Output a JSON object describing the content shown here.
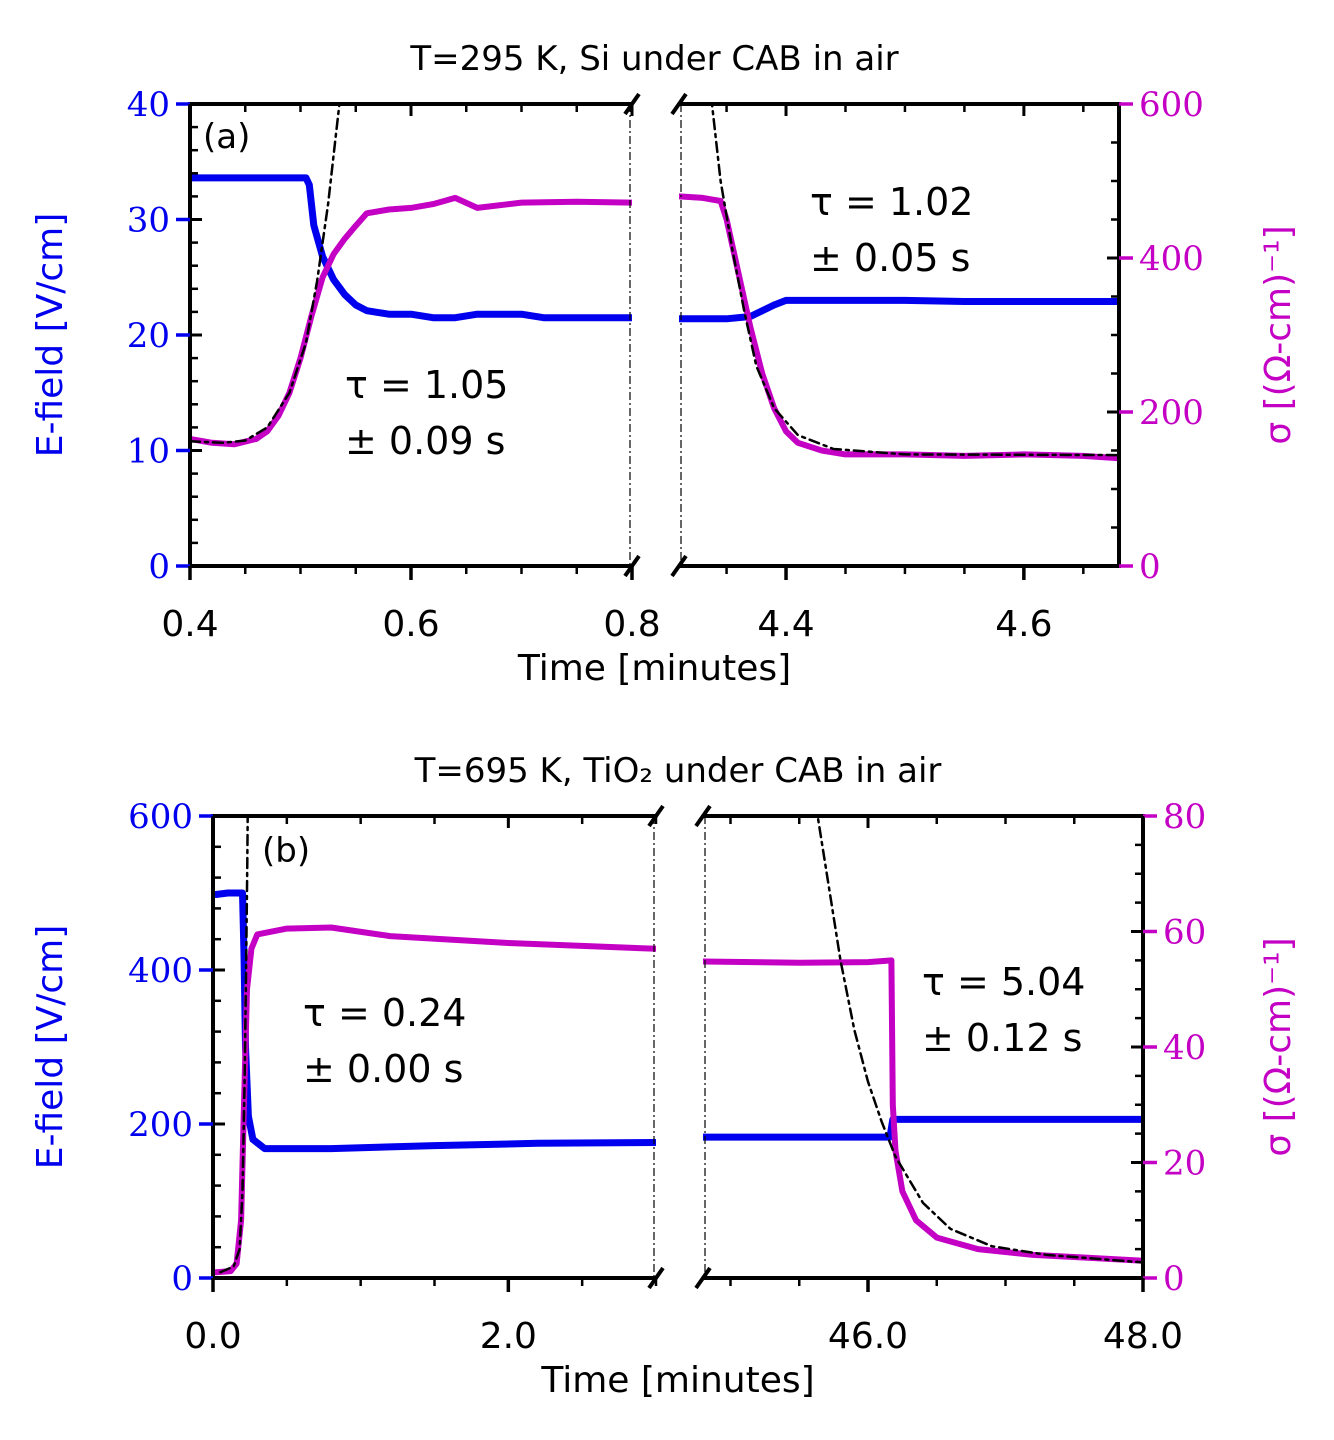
{
  "colors": {
    "efield": "#0000ee",
    "sigma": "#c400c4",
    "fit": "#000000",
    "axis": "#000000"
  },
  "chart_data": [
    {
      "type": "line",
      "panel_label": "(a)",
      "title": "T=295 K, Si under CAB in air",
      "xlabel": "Time [minutes]",
      "ylabel_left": "E-field [V/cm]",
      "ylabel_right": "σ [(Ω-cm)⁻¹]",
      "ylim_left": [
        0,
        40
      ],
      "ylim_right": [
        0,
        600
      ],
      "yticks_left": [
        "0",
        "10",
        "20",
        "30",
        "40"
      ],
      "yticks_right": [
        "0",
        "200",
        "400",
        "600"
      ],
      "segments": [
        {
          "xlim": [
            0.4,
            0.8
          ],
          "xticks": [
            0.4,
            0.6,
            0.8
          ],
          "xtick_labels": [
            "0.4",
            "0.6",
            "0.8"
          ]
        },
        {
          "xlim": [
            4.31,
            4.68
          ],
          "xticks": [
            4.4,
            4.6
          ],
          "xtick_labels": [
            "4.4",
            "4.6"
          ]
        }
      ],
      "annotations": [
        {
          "line1": "τ = 1.05",
          "line2": "± 0.09 s"
        },
        {
          "line1": "τ = 1.02",
          "line2": "± 0.05 s"
        }
      ],
      "series": [
        {
          "name": "E-field",
          "axis": "left",
          "segment": 0,
          "points": [
            [
              0.4,
              33.6
            ],
            [
              0.45,
              33.6
            ],
            [
              0.505,
              33.6
            ],
            [
              0.508,
              33.0
            ],
            [
              0.512,
              29.5
            ],
            [
              0.52,
              26.8
            ],
            [
              0.53,
              24.8
            ],
            [
              0.54,
              23.5
            ],
            [
              0.55,
              22.6
            ],
            [
              0.56,
              22.1
            ],
            [
              0.58,
              21.8
            ],
            [
              0.6,
              21.8
            ],
            [
              0.62,
              21.5
            ],
            [
              0.64,
              21.5
            ],
            [
              0.66,
              21.8
            ],
            [
              0.7,
              21.8
            ],
            [
              0.72,
              21.5
            ],
            [
              0.8,
              21.5
            ]
          ]
        },
        {
          "name": "E-field",
          "axis": "left",
          "segment": 1,
          "points": [
            [
              4.31,
              21.4
            ],
            [
              4.35,
              21.4
            ],
            [
              4.37,
              21.6
            ],
            [
              4.39,
              22.6
            ],
            [
              4.4,
              23.0
            ],
            [
              4.5,
              23.0
            ],
            [
              4.55,
              22.9
            ],
            [
              4.6,
              22.9
            ],
            [
              4.68,
              22.9
            ]
          ]
        },
        {
          "name": "σ",
          "axis": "right",
          "segment": 0,
          "points": [
            [
              0.4,
              165
            ],
            [
              0.42,
              160
            ],
            [
              0.44,
              158
            ],
            [
              0.46,
              165
            ],
            [
              0.47,
              175
            ],
            [
              0.48,
              195
            ],
            [
              0.49,
              225
            ],
            [
              0.5,
              270
            ],
            [
              0.51,
              325
            ],
            [
              0.52,
              375
            ],
            [
              0.53,
              405
            ],
            [
              0.54,
              425
            ],
            [
              0.55,
              442
            ],
            [
              0.56,
              458
            ],
            [
              0.58,
              463
            ],
            [
              0.6,
              465
            ],
            [
              0.62,
              470
            ],
            [
              0.64,
              478
            ],
            [
              0.66,
              465
            ],
            [
              0.7,
              472
            ],
            [
              0.75,
              473
            ],
            [
              0.8,
              472
            ]
          ]
        },
        {
          "name": "σ",
          "axis": "right",
          "segment": 1,
          "points": [
            [
              4.31,
              480
            ],
            [
              4.33,
              478
            ],
            [
              4.345,
              474
            ],
            [
              4.35,
              450
            ],
            [
              4.36,
              380
            ],
            [
              4.37,
              310
            ],
            [
              4.38,
              250
            ],
            [
              4.39,
              205
            ],
            [
              4.4,
              175
            ],
            [
              4.41,
              160
            ],
            [
              4.43,
              150
            ],
            [
              4.45,
              145
            ],
            [
              4.5,
              145
            ],
            [
              4.55,
              143
            ],
            [
              4.6,
              145
            ],
            [
              4.65,
              143
            ],
            [
              4.68,
              140
            ]
          ]
        },
        {
          "name": "fit",
          "axis": "right",
          "segment": 0,
          "points": [
            [
              0.4,
              162
            ],
            [
              0.43,
              160
            ],
            [
              0.45,
              163
            ],
            [
              0.47,
              180
            ],
            [
              0.49,
              225
            ],
            [
              0.505,
              290
            ],
            [
              0.515,
              370
            ],
            [
              0.525,
              470
            ],
            [
              0.532,
              560
            ],
            [
              0.536,
              610
            ]
          ]
        },
        {
          "name": "fit",
          "axis": "right",
          "segment": 1,
          "points": [
            [
              4.337,
              610
            ],
            [
              4.345,
              500
            ],
            [
              4.355,
              410
            ],
            [
              4.365,
              330
            ],
            [
              4.375,
              260
            ],
            [
              4.39,
              205
            ],
            [
              4.41,
              170
            ],
            [
              4.44,
              152
            ],
            [
              4.5,
              145
            ],
            [
              4.68,
              144
            ]
          ]
        }
      ]
    },
    {
      "type": "line",
      "panel_label": "(b)",
      "title": "T=695 K, TiO₂ under CAB in air",
      "xlabel": "Time [minutes]",
      "ylabel_left": "E-field [V/cm]",
      "ylabel_right": "σ [(Ω-cm)⁻¹]",
      "ylim_left": [
        0,
        600
      ],
      "ylim_right": [
        0,
        80
      ],
      "yticks_left": [
        "0",
        "200",
        "400",
        "600"
      ],
      "yticks_right": [
        "0",
        "20",
        "40",
        "60",
        "80"
      ],
      "segments": [
        {
          "xlim": [
            0.0,
            3.0
          ],
          "xticks": [
            0.0,
            2.0
          ],
          "xtick_labels": [
            "0.0",
            "2.0"
          ]
        },
        {
          "xlim": [
            44.8,
            48.0
          ],
          "xticks": [
            46.0,
            48.0
          ],
          "xtick_labels": [
            "46.0",
            "48.0"
          ]
        }
      ],
      "annotations": [
        {
          "line1": "τ = 0.24",
          "line2": "± 0.00 s"
        },
        {
          "line1": "τ = 5.04",
          "line2": "± 0.12 s"
        }
      ],
      "series": [
        {
          "name": "E-field",
          "axis": "left",
          "segment": 0,
          "points": [
            [
              0.02,
              498
            ],
            [
              0.1,
              500
            ],
            [
              0.2,
              500
            ],
            [
              0.21,
              420
            ],
            [
              0.22,
              300
            ],
            [
              0.24,
              210
            ],
            [
              0.27,
              180
            ],
            [
              0.35,
              168
            ],
            [
              0.8,
              168
            ],
            [
              1.5,
              172
            ],
            [
              2.2,
              175
            ],
            [
              3.0,
              176
            ]
          ]
        },
        {
          "name": "E-field",
          "axis": "left",
          "segment": 1,
          "points": [
            [
              44.8,
              183
            ],
            [
              45.5,
              183
            ],
            [
              46.1,
              183
            ],
            [
              46.16,
              183
            ],
            [
              46.18,
              206
            ],
            [
              47.0,
              206
            ],
            [
              48.0,
              206
            ]
          ]
        },
        {
          "name": "σ",
          "axis": "right",
          "segment": 0,
          "points": [
            [
              0.02,
              1
            ],
            [
              0.12,
              1.2
            ],
            [
              0.16,
              2.5
            ],
            [
              0.19,
              10
            ],
            [
              0.21,
              30
            ],
            [
              0.23,
              50
            ],
            [
              0.26,
              57
            ],
            [
              0.3,
              59.5
            ],
            [
              0.5,
              60.5
            ],
            [
              0.8,
              60.7
            ],
            [
              1.2,
              59.2
            ],
            [
              2.0,
              58
            ],
            [
              3.0,
              57
            ]
          ]
        },
        {
          "name": "σ",
          "axis": "right",
          "segment": 1,
          "points": [
            [
              44.8,
              54.8
            ],
            [
              45.5,
              54.6
            ],
            [
              46.0,
              54.7
            ],
            [
              46.17,
              55
            ],
            [
              46.18,
              30
            ],
            [
              46.2,
              22
            ],
            [
              46.25,
              15
            ],
            [
              46.35,
              10
            ],
            [
              46.5,
              7
            ],
            [
              46.8,
              5
            ],
            [
              47.2,
              4
            ],
            [
              47.6,
              3.5
            ],
            [
              48.0,
              3
            ]
          ]
        },
        {
          "name": "fit",
          "axis": "right",
          "segment": 0,
          "points": [
            [
              0.05,
              1
            ],
            [
              0.14,
              2
            ],
            [
              0.18,
              5
            ],
            [
              0.2,
              15
            ],
            [
              0.215,
              35
            ],
            [
              0.225,
              55
            ],
            [
              0.232,
              72
            ],
            [
              0.236,
              82
            ]
          ]
        },
        {
          "name": "fit",
          "axis": "right",
          "segment": 1,
          "points": [
            [
              45.62,
              82
            ],
            [
              45.7,
              70
            ],
            [
              45.8,
              55
            ],
            [
              45.9,
              43
            ],
            [
              46.0,
              34
            ],
            [
              46.1,
              27
            ],
            [
              46.2,
              21
            ],
            [
              46.4,
              13
            ],
            [
              46.6,
              8.5
            ],
            [
              46.9,
              5.5
            ],
            [
              47.3,
              4
            ],
            [
              48.0,
              2.7
            ]
          ]
        }
      ]
    }
  ]
}
